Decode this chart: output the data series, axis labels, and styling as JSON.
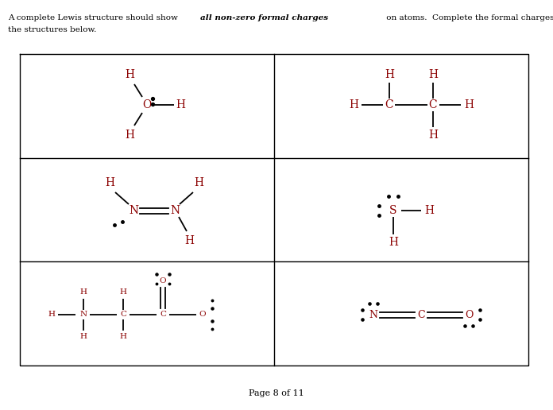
{
  "title_line1": "A complete Lewis structure should show ",
  "title_bold": "all non-zero formal charges",
  "title_line1b": " on atoms.  Complete the formal charges on",
  "title_line2": "the structures below.",
  "page_text": "Page 8 of 11",
  "background_color": "#ffffff",
  "text_color": "#000000",
  "atom_color": "#8B0000",
  "dot_color": "#000000",
  "bond_color": "#000000"
}
